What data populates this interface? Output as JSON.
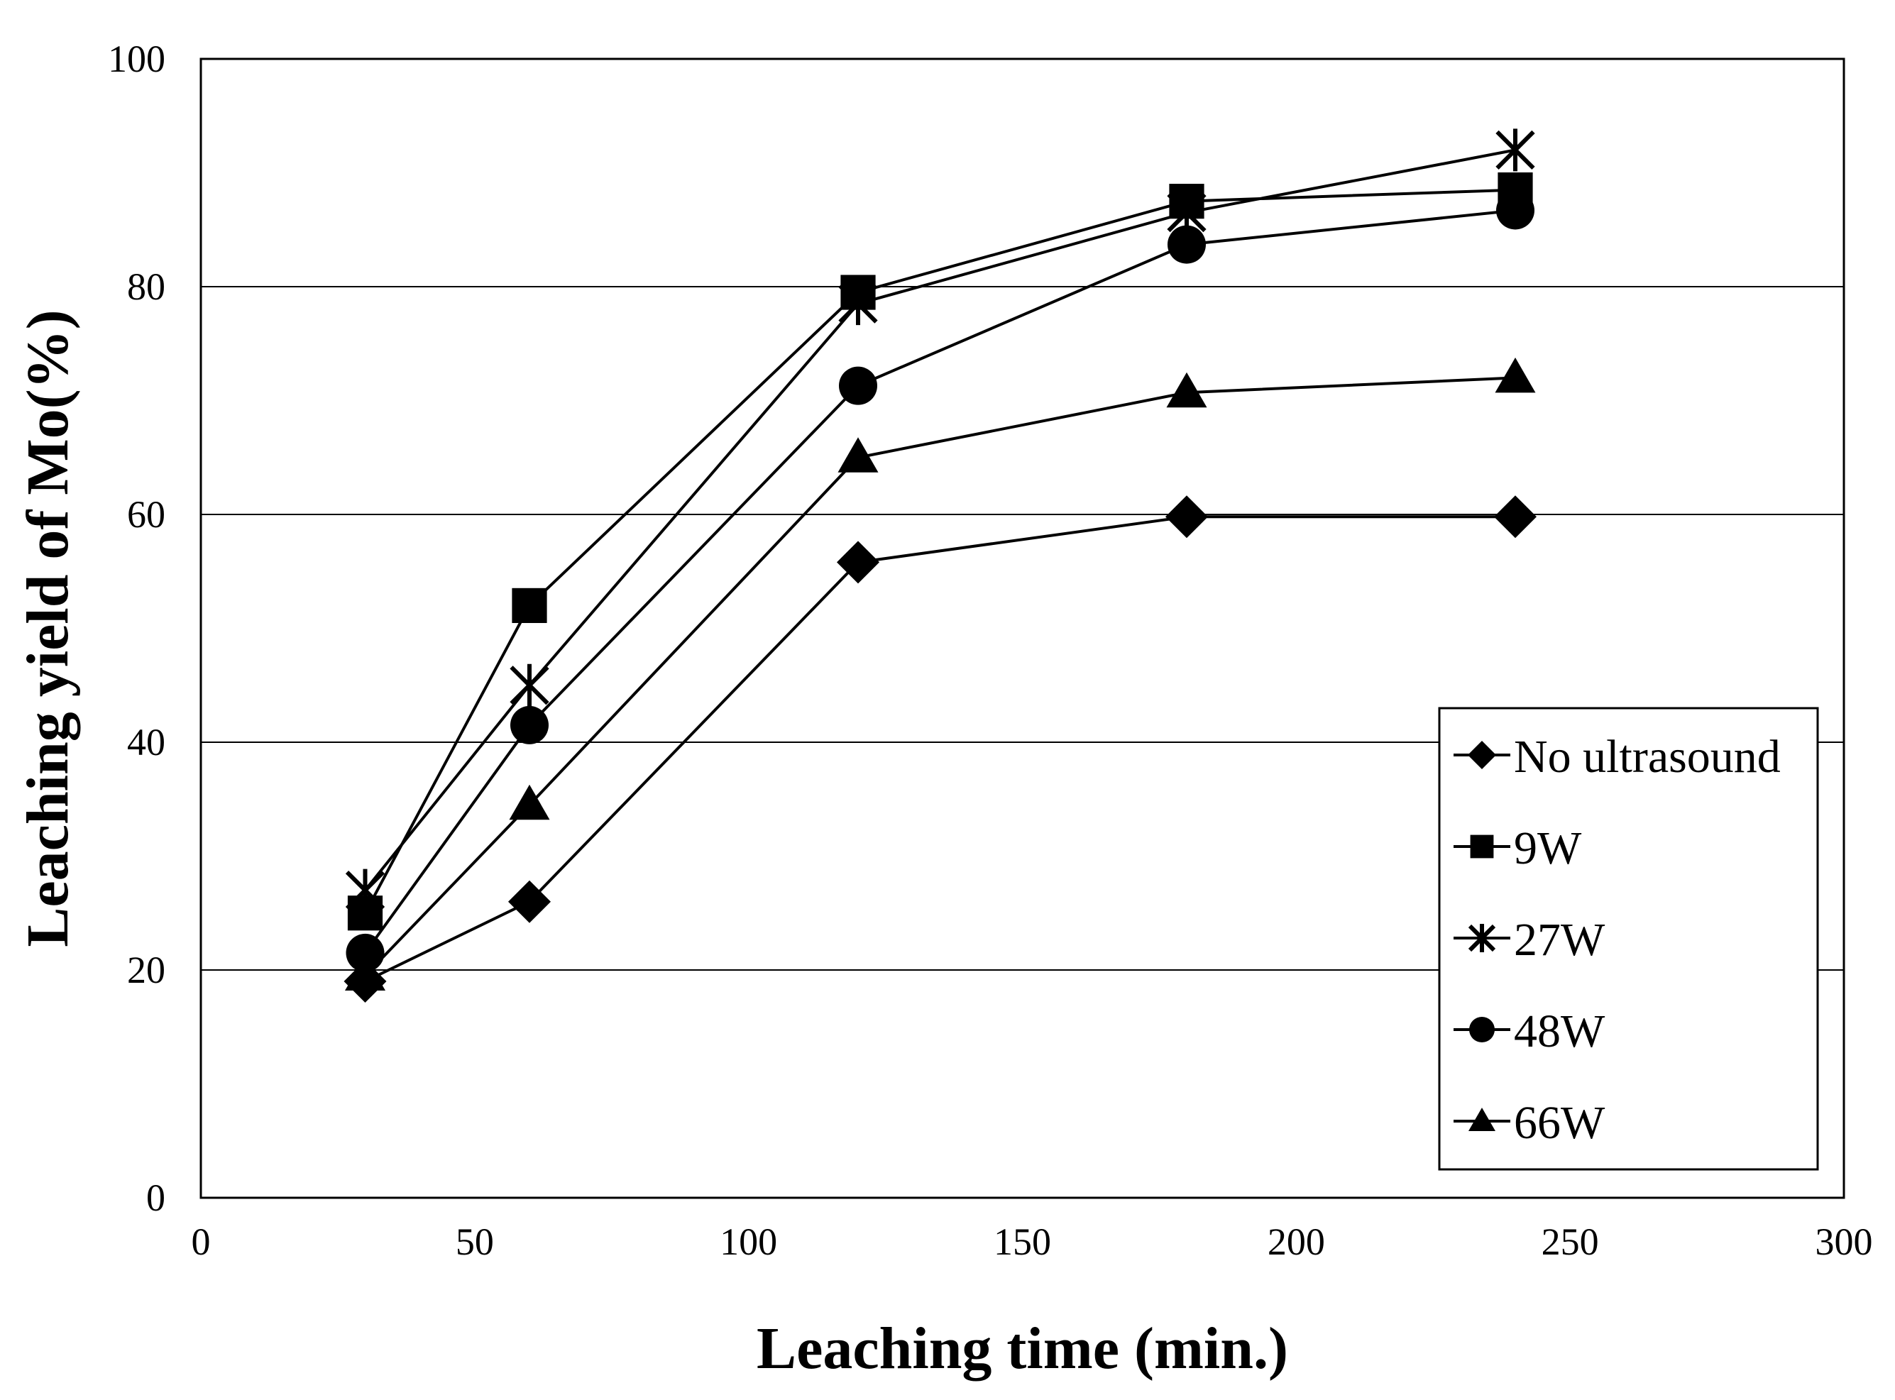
{
  "chart_data": {
    "type": "line",
    "title": "",
    "xlabel": "Leaching time (min.)",
    "ylabel": "Leaching yield of Mo(%)",
    "xlim": [
      0,
      300
    ],
    "ylim": [
      0,
      100
    ],
    "xticks": [
      0,
      50,
      100,
      150,
      200,
      250,
      300
    ],
    "yticks": [
      0,
      20,
      40,
      60,
      80,
      100
    ],
    "grid": "horizontal",
    "legend_position": "bottom-right",
    "x": [
      30,
      60,
      120,
      180,
      240
    ],
    "series": [
      {
        "name": "No ultrasound",
        "marker": "diamond",
        "values": [
          19,
          26,
          55.8,
          59.8,
          59.8
        ]
      },
      {
        "name": "9W",
        "marker": "square",
        "values": [
          25,
          52,
          79.5,
          87.5,
          88.5
        ]
      },
      {
        "name": "27W",
        "marker": "asterisk",
        "values": [
          27,
          45,
          78.5,
          86.5,
          92
        ]
      },
      {
        "name": "48W",
        "marker": "circle",
        "values": [
          21.5,
          41.5,
          71.3,
          83.7,
          86.7
        ]
      },
      {
        "name": "66W",
        "marker": "triangle",
        "values": [
          19.5,
          34.5,
          65,
          70.7,
          72
        ]
      }
    ]
  }
}
